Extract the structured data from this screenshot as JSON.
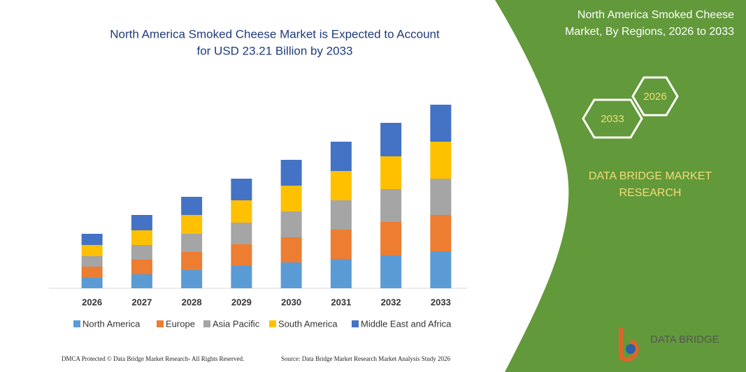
{
  "chart_data": {
    "type": "bar",
    "stacked": true,
    "title": [
      "North America Smoked Cheese Market is Expected to Account",
      "for USD 23.21 Billion by 2033"
    ],
    "categories": [
      "2026",
      "2027",
      "2028",
      "2029",
      "2030",
      "2031",
      "2032",
      "2033"
    ],
    "series": [
      {
        "name": "North America",
        "color": "#5b9bd5",
        "values": [
          15,
          20,
          26,
          32,
          37,
          42,
          47,
          53
        ]
      },
      {
        "name": "Europe",
        "color": "#ed7d31",
        "values": [
          16,
          21,
          26,
          31,
          36,
          42,
          48,
          52
        ]
      },
      {
        "name": "Asia Pacific",
        "color": "#a5a5a5",
        "values": [
          15,
          21,
          26,
          31,
          37,
          42,
          47,
          52
        ]
      },
      {
        "name": "South America",
        "color": "#ffc000",
        "values": [
          16,
          21,
          27,
          32,
          37,
          42,
          47,
          53
        ]
      },
      {
        "name": "Middle East and Africa",
        "color": "#4472c4",
        "values": [
          16,
          22,
          26,
          31,
          37,
          42,
          48,
          53
        ]
      }
    ],
    "ylim": [
      0,
      270
    ]
  },
  "panel": {
    "title": [
      "North America Smoked Cheese",
      "Market, By Regions, 2026 to 2033"
    ],
    "hex_labels": [
      "2026",
      "2033"
    ],
    "brand": [
      "DATA BRIDGE MARKET",
      "RESEARCH"
    ],
    "logo": "DATA BRIDGE"
  },
  "footer": {
    "left": "DMCA Protected © Data Bridge Market Research-  All Rights Reserved.",
    "right": "Source: Data Bridge Market Research  Market Analysis Study 2026"
  }
}
